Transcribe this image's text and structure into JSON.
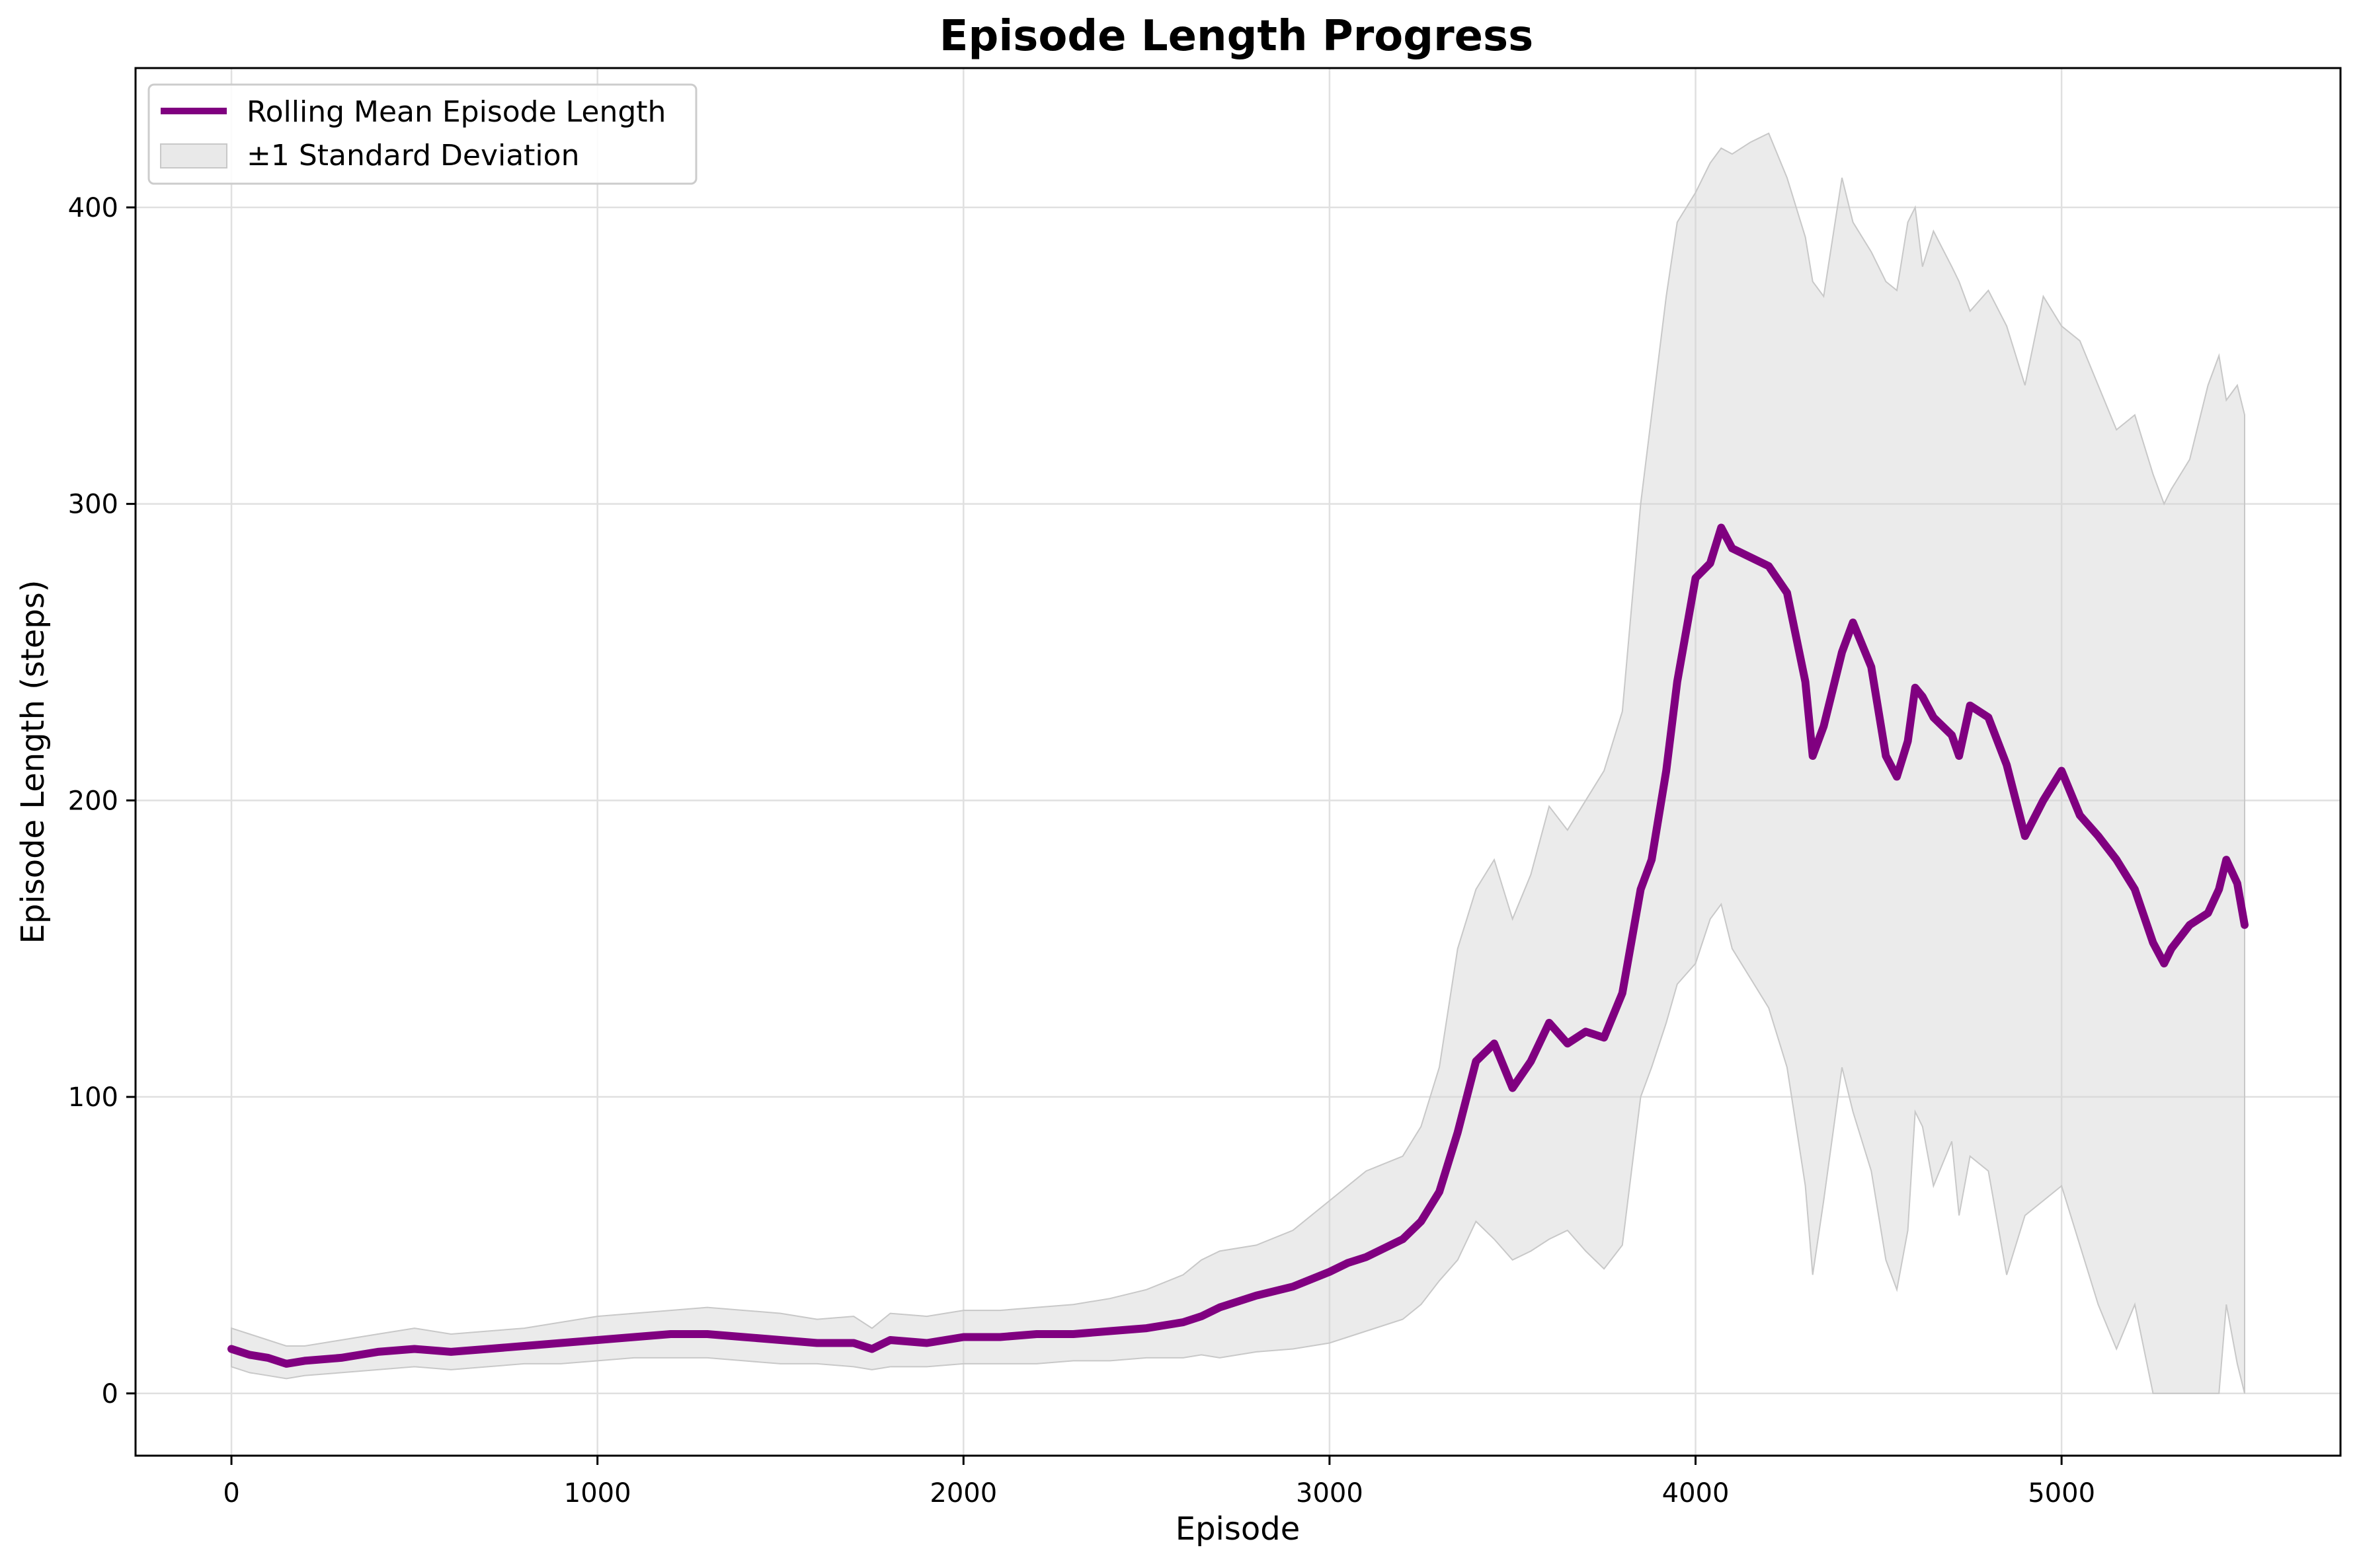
{
  "chart_data": {
    "type": "line",
    "title": "Episode Length Progress",
    "xlabel": "Episode",
    "ylabel": "Episode Length (steps)",
    "xlim": [
      -262,
      5762
    ],
    "ylim": [
      -21,
      447
    ],
    "xticks": [
      0,
      1000,
      2000,
      3000,
      4000,
      5000
    ],
    "yticks": [
      0,
      100,
      200,
      300,
      400
    ],
    "grid": true,
    "legend_position": "top-left",
    "legend": [
      "Rolling Mean Episode Length",
      "±1 Standard Deviation"
    ],
    "colors": {
      "mean": "#800080",
      "band_fill": "#d3d3d3",
      "grid": "#e0e0e0"
    },
    "series": [
      {
        "name": "Rolling Mean Episode Length",
        "x": [
          0,
          50,
          100,
          150,
          200,
          300,
          400,
          500,
          600,
          700,
          800,
          900,
          1000,
          1100,
          1200,
          1300,
          1400,
          1500,
          1600,
          1700,
          1750,
          1800,
          1900,
          2000,
          2100,
          2200,
          2300,
          2400,
          2500,
          2600,
          2650,
          2700,
          2800,
          2900,
          3000,
          3050,
          3100,
          3200,
          3250,
          3300,
          3350,
          3400,
          3450,
          3500,
          3550,
          3600,
          3650,
          3700,
          3750,
          3800,
          3850,
          3880,
          3920,
          3950,
          4000,
          4040,
          4070,
          4100,
          4150,
          4200,
          4250,
          4300,
          4320,
          4350,
          4400,
          4430,
          4480,
          4520,
          4550,
          4580,
          4600,
          4620,
          4650,
          4700,
          4720,
          4750,
          4800,
          4850,
          4900,
          4950,
          5000,
          5050,
          5100,
          5150,
          5200,
          5250,
          5280,
          5300,
          5350,
          5400,
          5430,
          5450,
          5480,
          5500
        ],
        "values": [
          15,
          13,
          12,
          10,
          11,
          12,
          14,
          15,
          14,
          15,
          16,
          17,
          18,
          19,
          20,
          20,
          19,
          18,
          17,
          17,
          15,
          18,
          17,
          19,
          19,
          20,
          20,
          21,
          22,
          24,
          26,
          29,
          33,
          36,
          41,
          44,
          46,
          52,
          58,
          68,
          88,
          112,
          118,
          103,
          112,
          125,
          118,
          122,
          120,
          135,
          170,
          180,
          210,
          240,
          275,
          280,
          292,
          285,
          282,
          279,
          270,
          240,
          215,
          225,
          250,
          260,
          245,
          215,
          208,
          220,
          238,
          235,
          228,
          222,
          215,
          232,
          228,
          212,
          188,
          200,
          210,
          195,
          188,
          180,
          170,
          152,
          145,
          150,
          158,
          162,
          170,
          180,
          172,
          158
        ]
      },
      {
        "name": "±1 Standard Deviation",
        "x": [
          0,
          50,
          100,
          150,
          200,
          300,
          400,
          500,
          600,
          700,
          800,
          900,
          1000,
          1100,
          1200,
          1300,
          1400,
          1500,
          1600,
          1700,
          1750,
          1800,
          1900,
          2000,
          2100,
          2200,
          2300,
          2400,
          2500,
          2600,
          2650,
          2700,
          2800,
          2900,
          3000,
          3050,
          3100,
          3200,
          3250,
          3300,
          3350,
          3400,
          3450,
          3500,
          3550,
          3600,
          3650,
          3700,
          3750,
          3800,
          3850,
          3880,
          3920,
          3950,
          4000,
          4040,
          4070,
          4100,
          4150,
          4200,
          4250,
          4300,
          4320,
          4350,
          4400,
          4430,
          4480,
          4520,
          4550,
          4580,
          4600,
          4620,
          4650,
          4700,
          4720,
          4750,
          4800,
          4850,
          4900,
          4950,
          5000,
          5050,
          5100,
          5150,
          5200,
          5250,
          5280,
          5300,
          5350,
          5400,
          5430,
          5450,
          5480,
          5500
        ],
        "lower": [
          9,
          7,
          6,
          5,
          6,
          7,
          8,
          9,
          8,
          9,
          10,
          10,
          11,
          12,
          12,
          12,
          11,
          10,
          10,
          9,
          8,
          9,
          9,
          10,
          10,
          10,
          11,
          11,
          12,
          12,
          13,
          12,
          14,
          15,
          17,
          19,
          21,
          25,
          30,
          38,
          45,
          58,
          52,
          45,
          48,
          52,
          55,
          48,
          42,
          50,
          100,
          110,
          125,
          138,
          145,
          160,
          165,
          150,
          140,
          130,
          110,
          70,
          40,
          65,
          110,
          95,
          75,
          45,
          35,
          55,
          95,
          90,
          70,
          85,
          60,
          80,
          75,
          40,
          60,
          65,
          70,
          50,
          30,
          15,
          30,
          0,
          0,
          0,
          0,
          0,
          0,
          30,
          10,
          0
        ],
        "upper": [
          22,
          20,
          18,
          16,
          16,
          18,
          20,
          22,
          20,
          21,
          22,
          24,
          26,
          27,
          28,
          29,
          28,
          27,
          25,
          26,
          22,
          27,
          26,
          28,
          28,
          29,
          30,
          32,
          35,
          40,
          45,
          48,
          50,
          55,
          65,
          70,
          75,
          80,
          90,
          110,
          150,
          170,
          180,
          160,
          175,
          198,
          190,
          200,
          210,
          230,
          300,
          330,
          370,
          395,
          405,
          415,
          420,
          418,
          422,
          425,
          410,
          390,
          375,
          370,
          410,
          395,
          385,
          375,
          372,
          395,
          400,
          380,
          392,
          380,
          375,
          365,
          372,
          360,
          340,
          370,
          360,
          355,
          340,
          325,
          330,
          310,
          300,
          305,
          315,
          340,
          350,
          335,
          340,
          330
        ]
      }
    ]
  }
}
